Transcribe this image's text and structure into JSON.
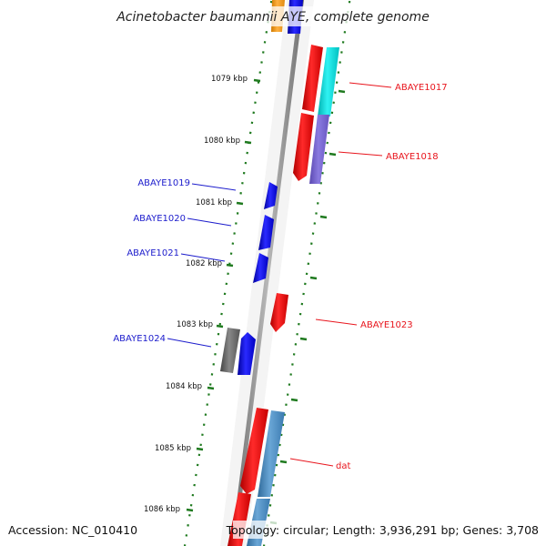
{
  "title": "Acinetobacter baumannii AYE, complete genome",
  "footer": {
    "accession": "Accession: NC_010410",
    "topology": "Topology: circular; Length: 3,936,291 bp; Genes: 3,708"
  },
  "ticks": [
    {
      "label": "1079 kbp"
    },
    {
      "label": "1080 kbp"
    },
    {
      "label": "1081 kbp"
    },
    {
      "label": "1082 kbp"
    },
    {
      "label": "1083 kbp"
    },
    {
      "label": "1084 kbp"
    },
    {
      "label": "1085 kbp"
    },
    {
      "label": "1086 kbp"
    }
  ],
  "gene_labels": [
    {
      "text": "ABAYE1017",
      "strand": "forward",
      "color": "#e8141c"
    },
    {
      "text": "ABAYE1018",
      "strand": "forward",
      "color": "#e8141c"
    },
    {
      "text": "ABAYE1019",
      "strand": "reverse",
      "color": "#1c1ccc"
    },
    {
      "text": "ABAYE1020",
      "strand": "reverse",
      "color": "#1c1ccc"
    },
    {
      "text": "ABAYE1021",
      "strand": "reverse",
      "color": "#1c1ccc"
    },
    {
      "text": "ABAYE1023",
      "strand": "forward",
      "color": "#e8141c"
    },
    {
      "text": "ABAYE1024",
      "strand": "reverse",
      "color": "#1c1ccc"
    },
    {
      "text": "dat",
      "strand": "forward",
      "color": "#e8141c"
    }
  ],
  "colors": {
    "backbone": "#8c8c8c",
    "tick_marks": "#1f7a1f",
    "forward_gene": "#ee1111",
    "reverse_gene": "#1515ee",
    "cyan_gene": "#11dddd",
    "purple_gene": "#7766cc",
    "steelblue_gene": "#4a8abf",
    "gray_gene": "#666666",
    "orange_gene": "#f39a1c"
  }
}
